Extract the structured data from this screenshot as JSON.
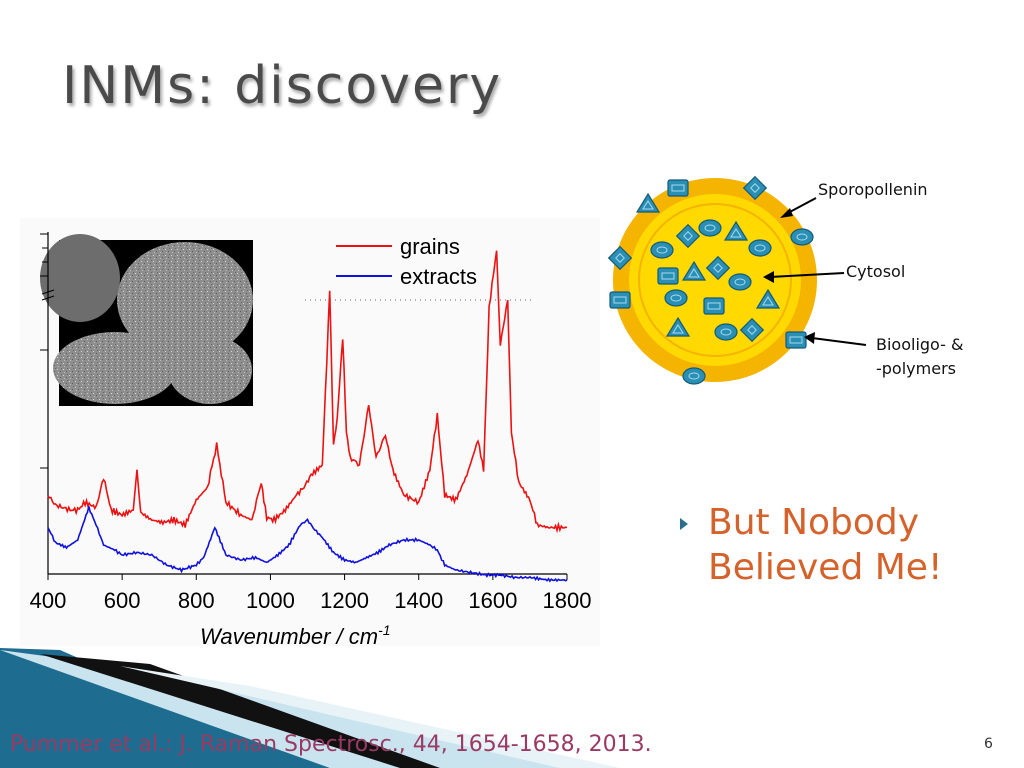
{
  "slide": {
    "title": "INMs: discovery",
    "bullet": "But Nobody\nBelieved Me!",
    "citation": "Pummer et al.: J. Raman Spectrosc., 44, 1654-1658, 2013.",
    "page_number": "6"
  },
  "diagram": {
    "labels": {
      "sporopollenin": "Sporopollenin",
      "cytosol": "Cytosol",
      "biooligo_line1": "Biooligo- &",
      "biooligo_line2": "-polymers"
    },
    "colors": {
      "outer_shell": "#f5b400",
      "inner_shell": "#ffd900",
      "particle": "#2a8fb5"
    }
  },
  "chart_data": {
    "type": "line",
    "xlabel": "Wavenumber / cm-1",
    "xlim": [
      400,
      1800
    ],
    "xticks": [
      "400",
      "600",
      "800",
      "1000",
      "1200",
      "1400",
      "1600",
      "1800"
    ],
    "legend_position": "top-right",
    "series": [
      {
        "name": "grains",
        "color": "#ee1111",
        "x": [
          400,
          420,
          440,
          460,
          480,
          500,
          530,
          550,
          570,
          600,
          630,
          640,
          650,
          680,
          710,
          740,
          770,
          800,
          830,
          855,
          880,
          920,
          950,
          975,
          990,
          1010,
          1040,
          1070,
          1090,
          1110,
          1140,
          1160,
          1170,
          1180,
          1195,
          1205,
          1215,
          1240,
          1265,
          1285,
          1310,
          1330,
          1360,
          1400,
          1430,
          1450,
          1470,
          1500,
          1530,
          1560,
          1575,
          1590,
          1610,
          1620,
          1640,
          1650,
          1670,
          1700,
          1720,
          1750,
          1800
        ],
        "y": [
          0.3,
          0.26,
          0.25,
          0.24,
          0.24,
          0.27,
          0.25,
          0.37,
          0.24,
          0.22,
          0.24,
          0.4,
          0.23,
          0.2,
          0.19,
          0.2,
          0.18,
          0.28,
          0.33,
          0.5,
          0.27,
          0.22,
          0.2,
          0.35,
          0.21,
          0.2,
          0.24,
          0.3,
          0.33,
          0.38,
          0.42,
          1.12,
          0.5,
          0.6,
          0.93,
          0.55,
          0.45,
          0.42,
          0.66,
          0.45,
          0.54,
          0.4,
          0.3,
          0.27,
          0.4,
          0.62,
          0.3,
          0.28,
          0.38,
          0.52,
          0.4,
          1.05,
          1.28,
          0.9,
          1.08,
          0.55,
          0.35,
          0.28,
          0.18,
          0.17,
          0.17
        ]
      },
      {
        "name": "extracts",
        "color": "#1111dd",
        "x": [
          400,
          420,
          450,
          480,
          510,
          530,
          550,
          580,
          600,
          640,
          680,
          720,
          760,
          800,
          820,
          850,
          880,
          920,
          960,
          990,
          1020,
          1050,
          1080,
          1100,
          1120,
          1140,
          1170,
          1200,
          1230,
          1260,
          1290,
          1320,
          1360,
          1400,
          1430,
          1450,
          1470,
          1500,
          1540,
          1580,
          1620,
          1660,
          1700,
          1750,
          1800
        ],
        "y": [
          0.17,
          0.11,
          0.09,
          0.12,
          0.25,
          0.18,
          0.1,
          0.08,
          0.06,
          0.07,
          0.06,
          0.02,
          0.0,
          0.02,
          0.05,
          0.17,
          0.06,
          0.04,
          0.05,
          0.03,
          0.06,
          0.1,
          0.18,
          0.2,
          0.16,
          0.13,
          0.07,
          0.04,
          0.03,
          0.05,
          0.07,
          0.1,
          0.12,
          0.12,
          0.1,
          0.08,
          0.02,
          0.0,
          -0.01,
          -0.02,
          -0.02,
          -0.03,
          -0.03,
          -0.04,
          -0.04
        ]
      }
    ]
  }
}
